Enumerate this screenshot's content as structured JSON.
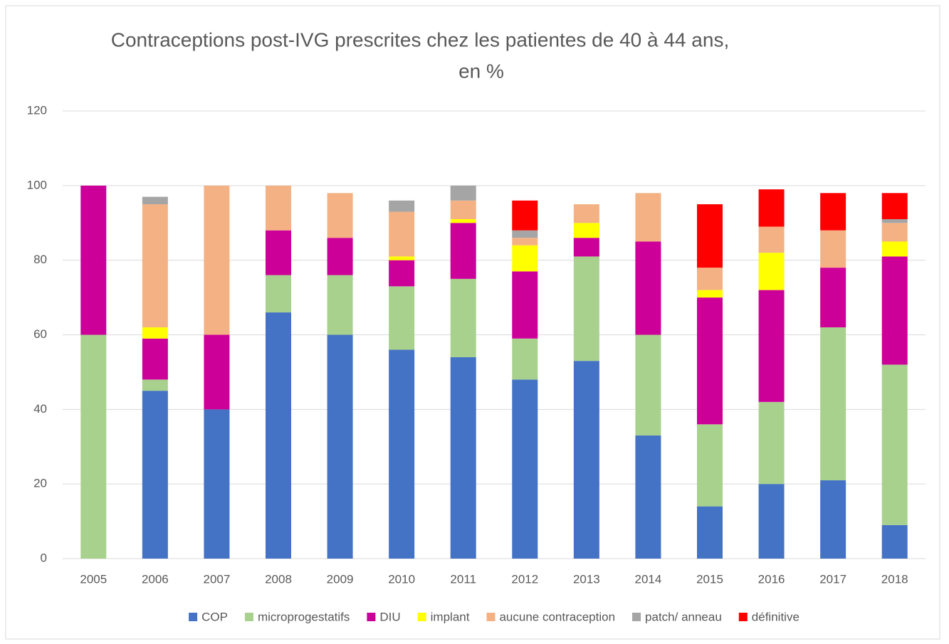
{
  "chart_data": {
    "type": "stacked_bar",
    "title": [
      "Contraceptions post-IVG prescrites chez les patientes de 40 à 44 ans,",
      "en %"
    ],
    "categories": [
      "2005",
      "2006",
      "2007",
      "2008",
      "2009",
      "2010",
      "2011",
      "2012",
      "2013",
      "2014",
      "2015",
      "2016",
      "2017",
      "2018"
    ],
    "series": [
      {
        "name": "COP",
        "color": "#4472c4",
        "values": [
          0,
          45,
          40,
          66,
          60,
          56,
          54,
          48,
          53,
          33,
          14,
          20,
          21,
          9
        ]
      },
      {
        "name": "microprogestatifs",
        "color": "#a9d18e",
        "values": [
          60,
          3,
          0,
          10,
          16,
          17,
          21,
          11,
          28,
          27,
          22,
          22,
          41,
          43
        ]
      },
      {
        "name": "DIU",
        "color": "#cc0099",
        "values": [
          40,
          11,
          20,
          12,
          10,
          7,
          15,
          18,
          5,
          25,
          34,
          30,
          16,
          29
        ]
      },
      {
        "name": "implant",
        "color": "#ffff00",
        "values": [
          0,
          3,
          0,
          0,
          0,
          1,
          1,
          7,
          4,
          0,
          2,
          10,
          0,
          4
        ]
      },
      {
        "name": "aucune contraception",
        "color": "#f4b183",
        "values": [
          0,
          33,
          40,
          12,
          12,
          12,
          5,
          2,
          5,
          13,
          6,
          7,
          10,
          5
        ]
      },
      {
        "name": "patch/ anneau",
        "color": "#a5a5a5",
        "values": [
          0,
          2,
          0,
          0,
          0,
          3,
          4,
          2,
          0,
          0,
          0,
          0,
          0,
          1
        ]
      },
      {
        "name": "définitive",
        "color": "#ff0000",
        "values": [
          0,
          0,
          0,
          0,
          0,
          0,
          0,
          8,
          0,
          0,
          17,
          10,
          10,
          7
        ]
      }
    ],
    "ylim": [
      0,
      120
    ],
    "yticks": [
      0,
      20,
      40,
      60,
      80,
      100,
      120
    ],
    "grid": true,
    "legend": "bottom"
  }
}
